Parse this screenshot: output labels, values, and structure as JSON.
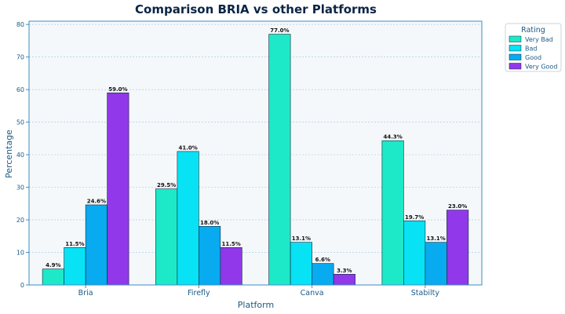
{
  "chart_data": {
    "type": "bar",
    "title": "Comparison BRIA vs other Platforms",
    "xlabel": "Platform",
    "ylabel": "Percentage",
    "categories": [
      "Bria",
      "Firefly",
      "Canva",
      "Stabilty"
    ],
    "ylim": [
      0,
      81
    ],
    "yticks": [
      0,
      10,
      20,
      30,
      40,
      50,
      60,
      70,
      80
    ],
    "grid": true,
    "legend": {
      "title": "Rating",
      "placement": "outside-top-right"
    },
    "series": [
      {
        "name": "Very Bad",
        "color": "#1de9c9",
        "values": [
          4.9,
          29.5,
          77.0,
          44.3
        ],
        "labels": [
          "4.9%",
          "29.5%",
          "77.0%",
          "44.3%"
        ]
      },
      {
        "name": "Bad",
        "color": "#08e2f5",
        "values": [
          11.5,
          41.0,
          13.1,
          19.7
        ],
        "labels": [
          "11.5%",
          "41.0%",
          "13.1%",
          "19.7%"
        ]
      },
      {
        "name": "Good",
        "color": "#08aaf0",
        "values": [
          24.6,
          18.0,
          6.6,
          13.1
        ],
        "labels": [
          "24.6%",
          "18.0%",
          "6.6%",
          "13.1%"
        ]
      },
      {
        "name": "Very Good",
        "color": "#9038ea",
        "values": [
          59.0,
          11.5,
          3.3,
          23.0
        ],
        "labels": [
          "59.0%",
          "11.5%",
          "3.3%",
          "23.0%"
        ]
      }
    ],
    "colors": {
      "plot_background": "#f5f8fa",
      "axis": "#3a8fc2",
      "grid": "#a8cde0",
      "bar_edge": "#0d2a3a"
    }
  }
}
